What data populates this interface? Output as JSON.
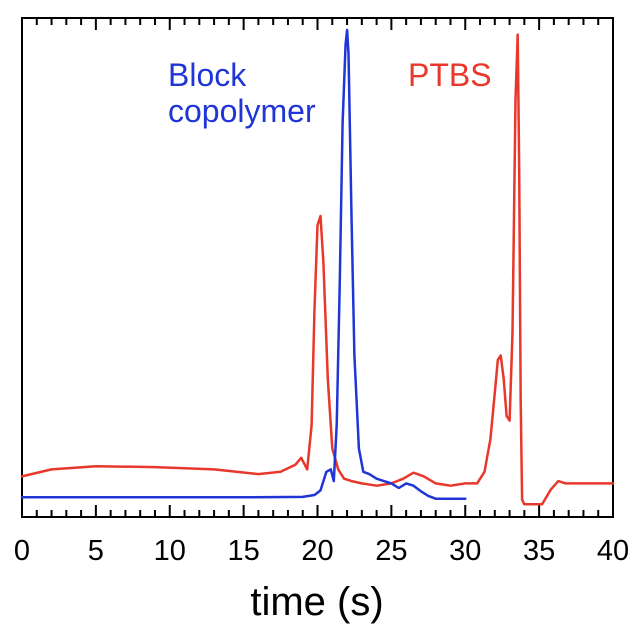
{
  "chart_data": {
    "type": "line",
    "title": "",
    "xlabel": "time (s)",
    "ylabel": "",
    "xlim": [
      0,
      40
    ],
    "ylim": [
      0,
      1
    ],
    "xticks": [
      0,
      5,
      10,
      15,
      20,
      25,
      30,
      35,
      40
    ],
    "grid": false,
    "legend": "none",
    "series": [
      {
        "name": "PTBS",
        "label_lines": [
          "PTBS"
        ],
        "color": "#e8372b",
        "x": [
          0.0,
          2.0,
          5.0,
          9.0,
          13.0,
          16.0,
          17.5,
          18.5,
          18.9,
          19.3,
          19.6,
          19.8,
          20.0,
          20.2,
          20.4,
          20.7,
          21.0,
          21.4,
          21.8,
          22.3,
          23.0,
          24.0,
          25.0,
          25.8,
          26.5,
          27.2,
          28.0,
          29.0,
          30.0,
          30.8,
          31.3,
          31.7,
          32.0,
          32.2,
          32.4,
          32.6,
          32.8,
          33.0,
          33.2,
          33.4,
          33.55,
          33.65,
          33.75,
          33.85,
          34.0,
          34.5,
          35.2,
          35.8,
          36.3,
          36.8,
          37.5,
          38.5,
          40.0
        ],
        "y": [
          0.04,
          0.055,
          0.062,
          0.06,
          0.055,
          0.045,
          0.05,
          0.065,
          0.08,
          0.055,
          0.15,
          0.4,
          0.58,
          0.6,
          0.5,
          0.25,
          0.1,
          0.055,
          0.035,
          0.03,
          0.025,
          0.02,
          0.025,
          0.035,
          0.048,
          0.04,
          0.025,
          0.02,
          0.025,
          0.025,
          0.05,
          0.12,
          0.22,
          0.29,
          0.3,
          0.25,
          0.17,
          0.16,
          0.35,
          0.85,
          0.99,
          0.7,
          0.2,
          -0.01,
          -0.02,
          -0.02,
          -0.02,
          0.012,
          0.03,
          0.025,
          0.025,
          0.025,
          0.025
        ]
      },
      {
        "name": "Block copolymer",
        "label_lines": [
          "Block",
          "copolymer"
        ],
        "color": "#1f35d6",
        "x": [
          0.0,
          5.0,
          10.0,
          15.0,
          19.0,
          19.8,
          20.2,
          20.6,
          20.9,
          21.1,
          21.3,
          21.5,
          21.7,
          21.9,
          22.0,
          22.1,
          22.3,
          22.5,
          22.8,
          23.1,
          23.5,
          24.0,
          24.5,
          25.0,
          25.5,
          26.0,
          26.5,
          27.0,
          27.5,
          28.0,
          30.0
        ],
        "y": [
          -0.005,
          -0.005,
          -0.005,
          -0.005,
          -0.004,
          0.0,
          0.01,
          0.05,
          0.055,
          0.03,
          0.15,
          0.45,
          0.8,
          0.97,
          1.0,
          0.95,
          0.6,
          0.3,
          0.1,
          0.05,
          0.045,
          0.035,
          0.03,
          0.025,
          0.015,
          0.025,
          0.02,
          0.008,
          -0.002,
          -0.008,
          -0.008
        ]
      }
    ]
  }
}
